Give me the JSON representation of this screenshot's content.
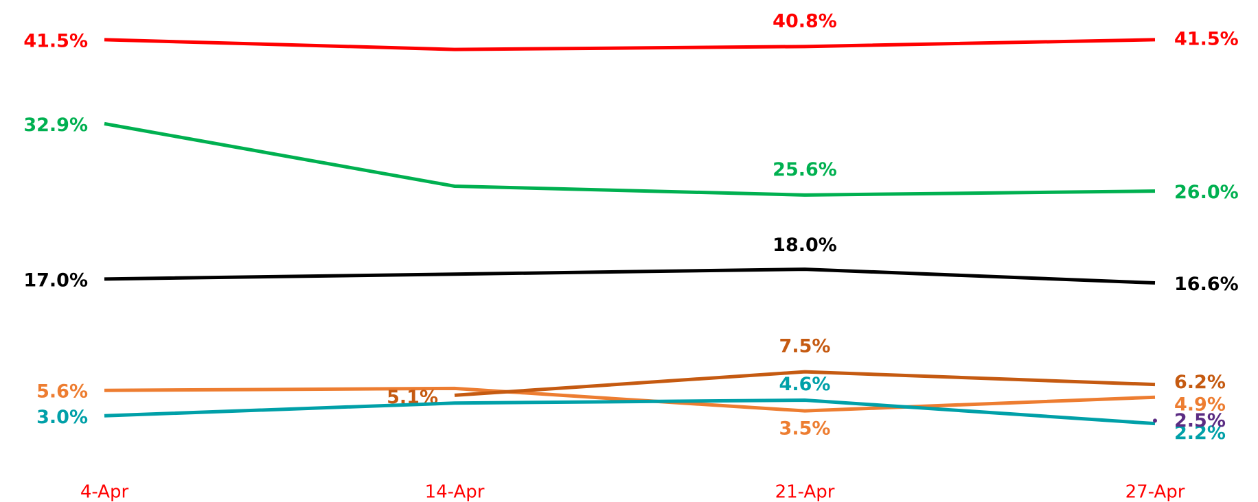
{
  "chart_data": {
    "type": "line",
    "categories": [
      "4-Apr",
      "14-Apr",
      "21-Apr",
      "27-Apr"
    ],
    "ylim": [
      0,
      45
    ],
    "series": [
      {
        "color": "#ff0000",
        "values": [
          41.5,
          40.5,
          40.8,
          41.5
        ],
        "value_labels": [
          "41.5%",
          null,
          "40.8%",
          "41.5%"
        ]
      },
      {
        "color": "#00b050",
        "values": [
          32.9,
          26.5,
          25.6,
          26.0
        ],
        "value_labels": [
          "32.9%",
          null,
          "25.6%",
          "26.0%"
        ]
      },
      {
        "color": "#000000",
        "values": [
          17.0,
          17.5,
          18.0,
          16.6
        ],
        "value_labels": [
          "17.0%",
          null,
          "18.0%",
          "16.6%"
        ]
      },
      {
        "color": "#ed7d31",
        "values": [
          5.6,
          5.8,
          3.5,
          4.9
        ],
        "value_labels": [
          "5.6%",
          null,
          "3.5%",
          "4.9%"
        ]
      },
      {
        "color": "#c55a11",
        "values": [
          null,
          5.1,
          7.5,
          6.2
        ],
        "value_labels": [
          null,
          "5.1%",
          "7.5%",
          "6.2%"
        ]
      },
      {
        "color": "#00a0a8",
        "values": [
          3.0,
          4.3,
          4.6,
          2.2
        ],
        "value_labels": [
          "3.0%",
          null,
          "4.6%",
          "2.2%"
        ]
      },
      {
        "color": "#5b2c83",
        "values": [
          null,
          null,
          null,
          2.5
        ],
        "value_labels": [
          null,
          null,
          null,
          "2.5%"
        ]
      }
    ]
  }
}
